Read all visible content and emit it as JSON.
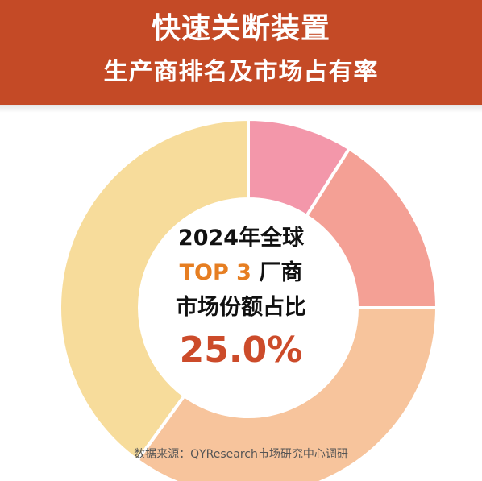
{
  "header": {
    "title": "快速关断装置",
    "subtitle": "生产商排名及市场占有率"
  },
  "center": {
    "year_label": "2024年全球",
    "top_label": "TOP 3",
    "top_suffix": "厂商",
    "metric_label": "市场份额占比",
    "value": "25.0%"
  },
  "source": "数据来源：QYResearch市场研究中心调研",
  "colors": {
    "header": "#c44a26",
    "accent": "#e67e22",
    "value": "#cc4b2a"
  },
  "chart_data": {
    "type": "pie",
    "style": "donut",
    "start": "top",
    "direction": "clockwise",
    "unit": "%",
    "series": [
      {
        "value": 9,
        "color": "#f397aa"
      },
      {
        "value": 16,
        "color": "#f4a095"
      },
      {
        "value": 35,
        "color": "#f7c49c"
      },
      {
        "value": 40,
        "color": "#f7dc9b"
      }
    ]
  }
}
